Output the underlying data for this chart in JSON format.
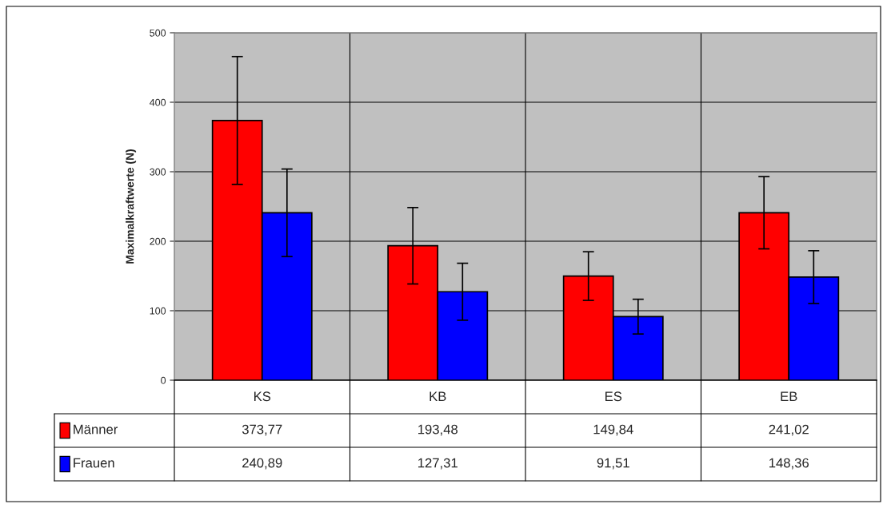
{
  "chart_data": {
    "type": "bar",
    "ylabel": "Maximalkraftwerte (N)",
    "categories": [
      "KS",
      "KB",
      "ES",
      "EB"
    ],
    "series": [
      {
        "name": "Männer",
        "color": "#ff0000",
        "values": [
          373.77,
          193.48,
          149.84,
          241.02
        ],
        "errors": [
          92,
          55,
          35,
          52
        ],
        "value_labels": [
          "373,77",
          "193,48",
          "149,84",
          "241,02"
        ]
      },
      {
        "name": "Frauen",
        "color": "#0000ff",
        "values": [
          240.89,
          127.31,
          91.51,
          148.36
        ],
        "errors": [
          63,
          41,
          25,
          38
        ],
        "value_labels": [
          "240,89",
          "127,31",
          "91,51",
          "148,36"
        ]
      }
    ],
    "ylim": [
      0,
      500
    ],
    "yticks": [
      0,
      100,
      200,
      300,
      400,
      500
    ],
    "grid": true,
    "legend": "bottom"
  }
}
